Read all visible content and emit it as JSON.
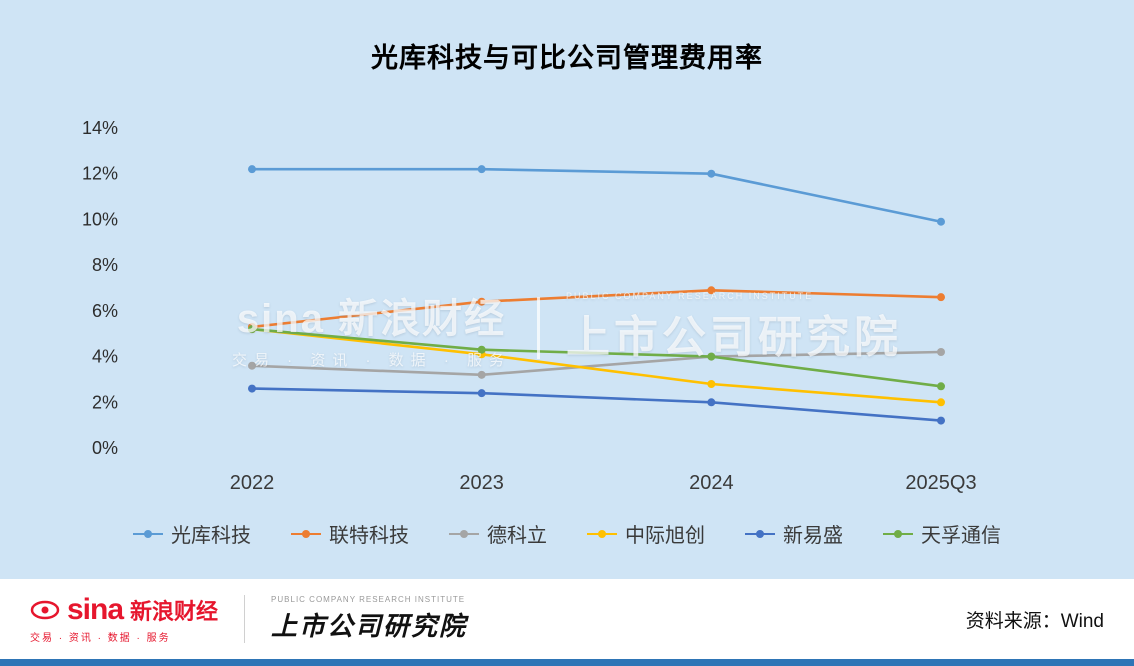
{
  "title": "光库科技与可比公司管理费用率",
  "chart_data": {
    "type": "line",
    "title": "光库科技与可比公司管理费用率",
    "categories": [
      "2022",
      "2023",
      "2024",
      "2025Q3"
    ],
    "series": [
      {
        "name": "光库科技",
        "color": "#5B9BD5",
        "values": [
          12.2,
          12.2,
          12.0,
          9.9
        ]
      },
      {
        "name": "联特科技",
        "color": "#ED7D31",
        "values": [
          5.3,
          6.4,
          6.9,
          6.6
        ]
      },
      {
        "name": "德科立",
        "color": "#A5A5A5",
        "values": [
          3.6,
          3.2,
          4.0,
          4.2
        ]
      },
      {
        "name": "中际旭创",
        "color": "#FFC000",
        "values": [
          5.2,
          4.1,
          2.8,
          2.0
        ]
      },
      {
        "name": "新易盛",
        "color": "#4472C4",
        "values": [
          2.6,
          2.4,
          2.0,
          1.2
        ]
      },
      {
        "name": "天孚通信",
        "color": "#70AD47",
        "values": [
          5.2,
          4.3,
          4.0,
          2.7
        ]
      }
    ],
    "ylim": [
      0,
      14
    ],
    "ytick_step": 2,
    "ytick_suffix": "%",
    "grid": false,
    "legend_position": "bottom"
  },
  "watermark": {
    "left_main": "sina 新浪财经",
    "left_sub": "交易 · 资讯 · 数据 · 服务",
    "right_main": "上市公司研究院",
    "right_sub": "PUBLIC COMPANY RESEARCH INSTITUTE"
  },
  "footer": {
    "sina_logo": "sina",
    "sina_name": "新浪财经",
    "sina_services": "交易 · 资讯 · 数据 · 服务",
    "institute_en": "PUBLIC COMPANY RESEARCH INSTITUTE",
    "institute": "上市公司研究院",
    "source": "资料来源：Wind"
  }
}
